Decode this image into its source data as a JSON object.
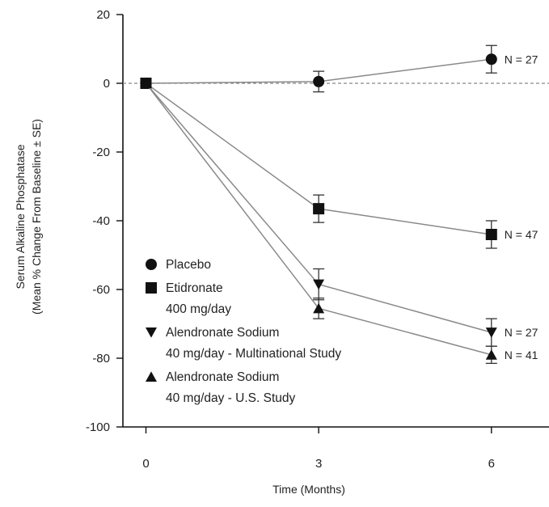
{
  "chart_data": {
    "type": "line",
    "xlabel": "Time (Months)",
    "ylabel_line1": "Serum Alkaline Phosphatase",
    "ylabel_line2": "(Mean % Change From Baseline ± SE)",
    "xticks": [
      0,
      3,
      6
    ],
    "yticks": [
      20,
      0,
      -20,
      -40,
      -60,
      -80,
      -100
    ],
    "xlim": [
      -0.4,
      7.0
    ],
    "ylim": [
      -100,
      20
    ],
    "reference_line_y": 0,
    "x": [
      0,
      3,
      6
    ],
    "series": [
      {
        "marker": "circle",
        "values": [
          0,
          0.5,
          7
        ],
        "errors": [
          0,
          3,
          4
        ],
        "n_label": "N = 27"
      },
      {
        "marker": "square",
        "values": [
          0,
          -36.5,
          -44
        ],
        "errors": [
          0,
          4,
          4
        ],
        "n_label": "N = 47"
      },
      {
        "marker": "triangle-down",
        "values": [
          0,
          -58.5,
          -72.5
        ],
        "errors": [
          0,
          4.5,
          4
        ],
        "n_label": "N = 27"
      },
      {
        "marker": "triangle-up",
        "values": [
          0,
          -65.5,
          -79
        ],
        "errors": [
          0,
          3,
          2.5
        ],
        "n_label": "N = 41"
      }
    ],
    "legend": {
      "placement": "lower-left",
      "entries": [
        {
          "marker": "circle",
          "lines": [
            "Placebo"
          ]
        },
        {
          "marker": "square",
          "lines": [
            "Etidronate",
            "400 mg/day"
          ]
        },
        {
          "marker": "triangle-down",
          "lines": [
            "Alendronate Sodium",
            "40 mg/day - Multinational Study"
          ]
        },
        {
          "marker": "triangle-up",
          "lines": [
            "Alendronate Sodium",
            "40 mg/day - U.S. Study"
          ]
        }
      ]
    },
    "colors": {
      "line": "#8a8a8a",
      "marker": "#111111",
      "axis": "#111111",
      "reference": "#888888"
    }
  }
}
